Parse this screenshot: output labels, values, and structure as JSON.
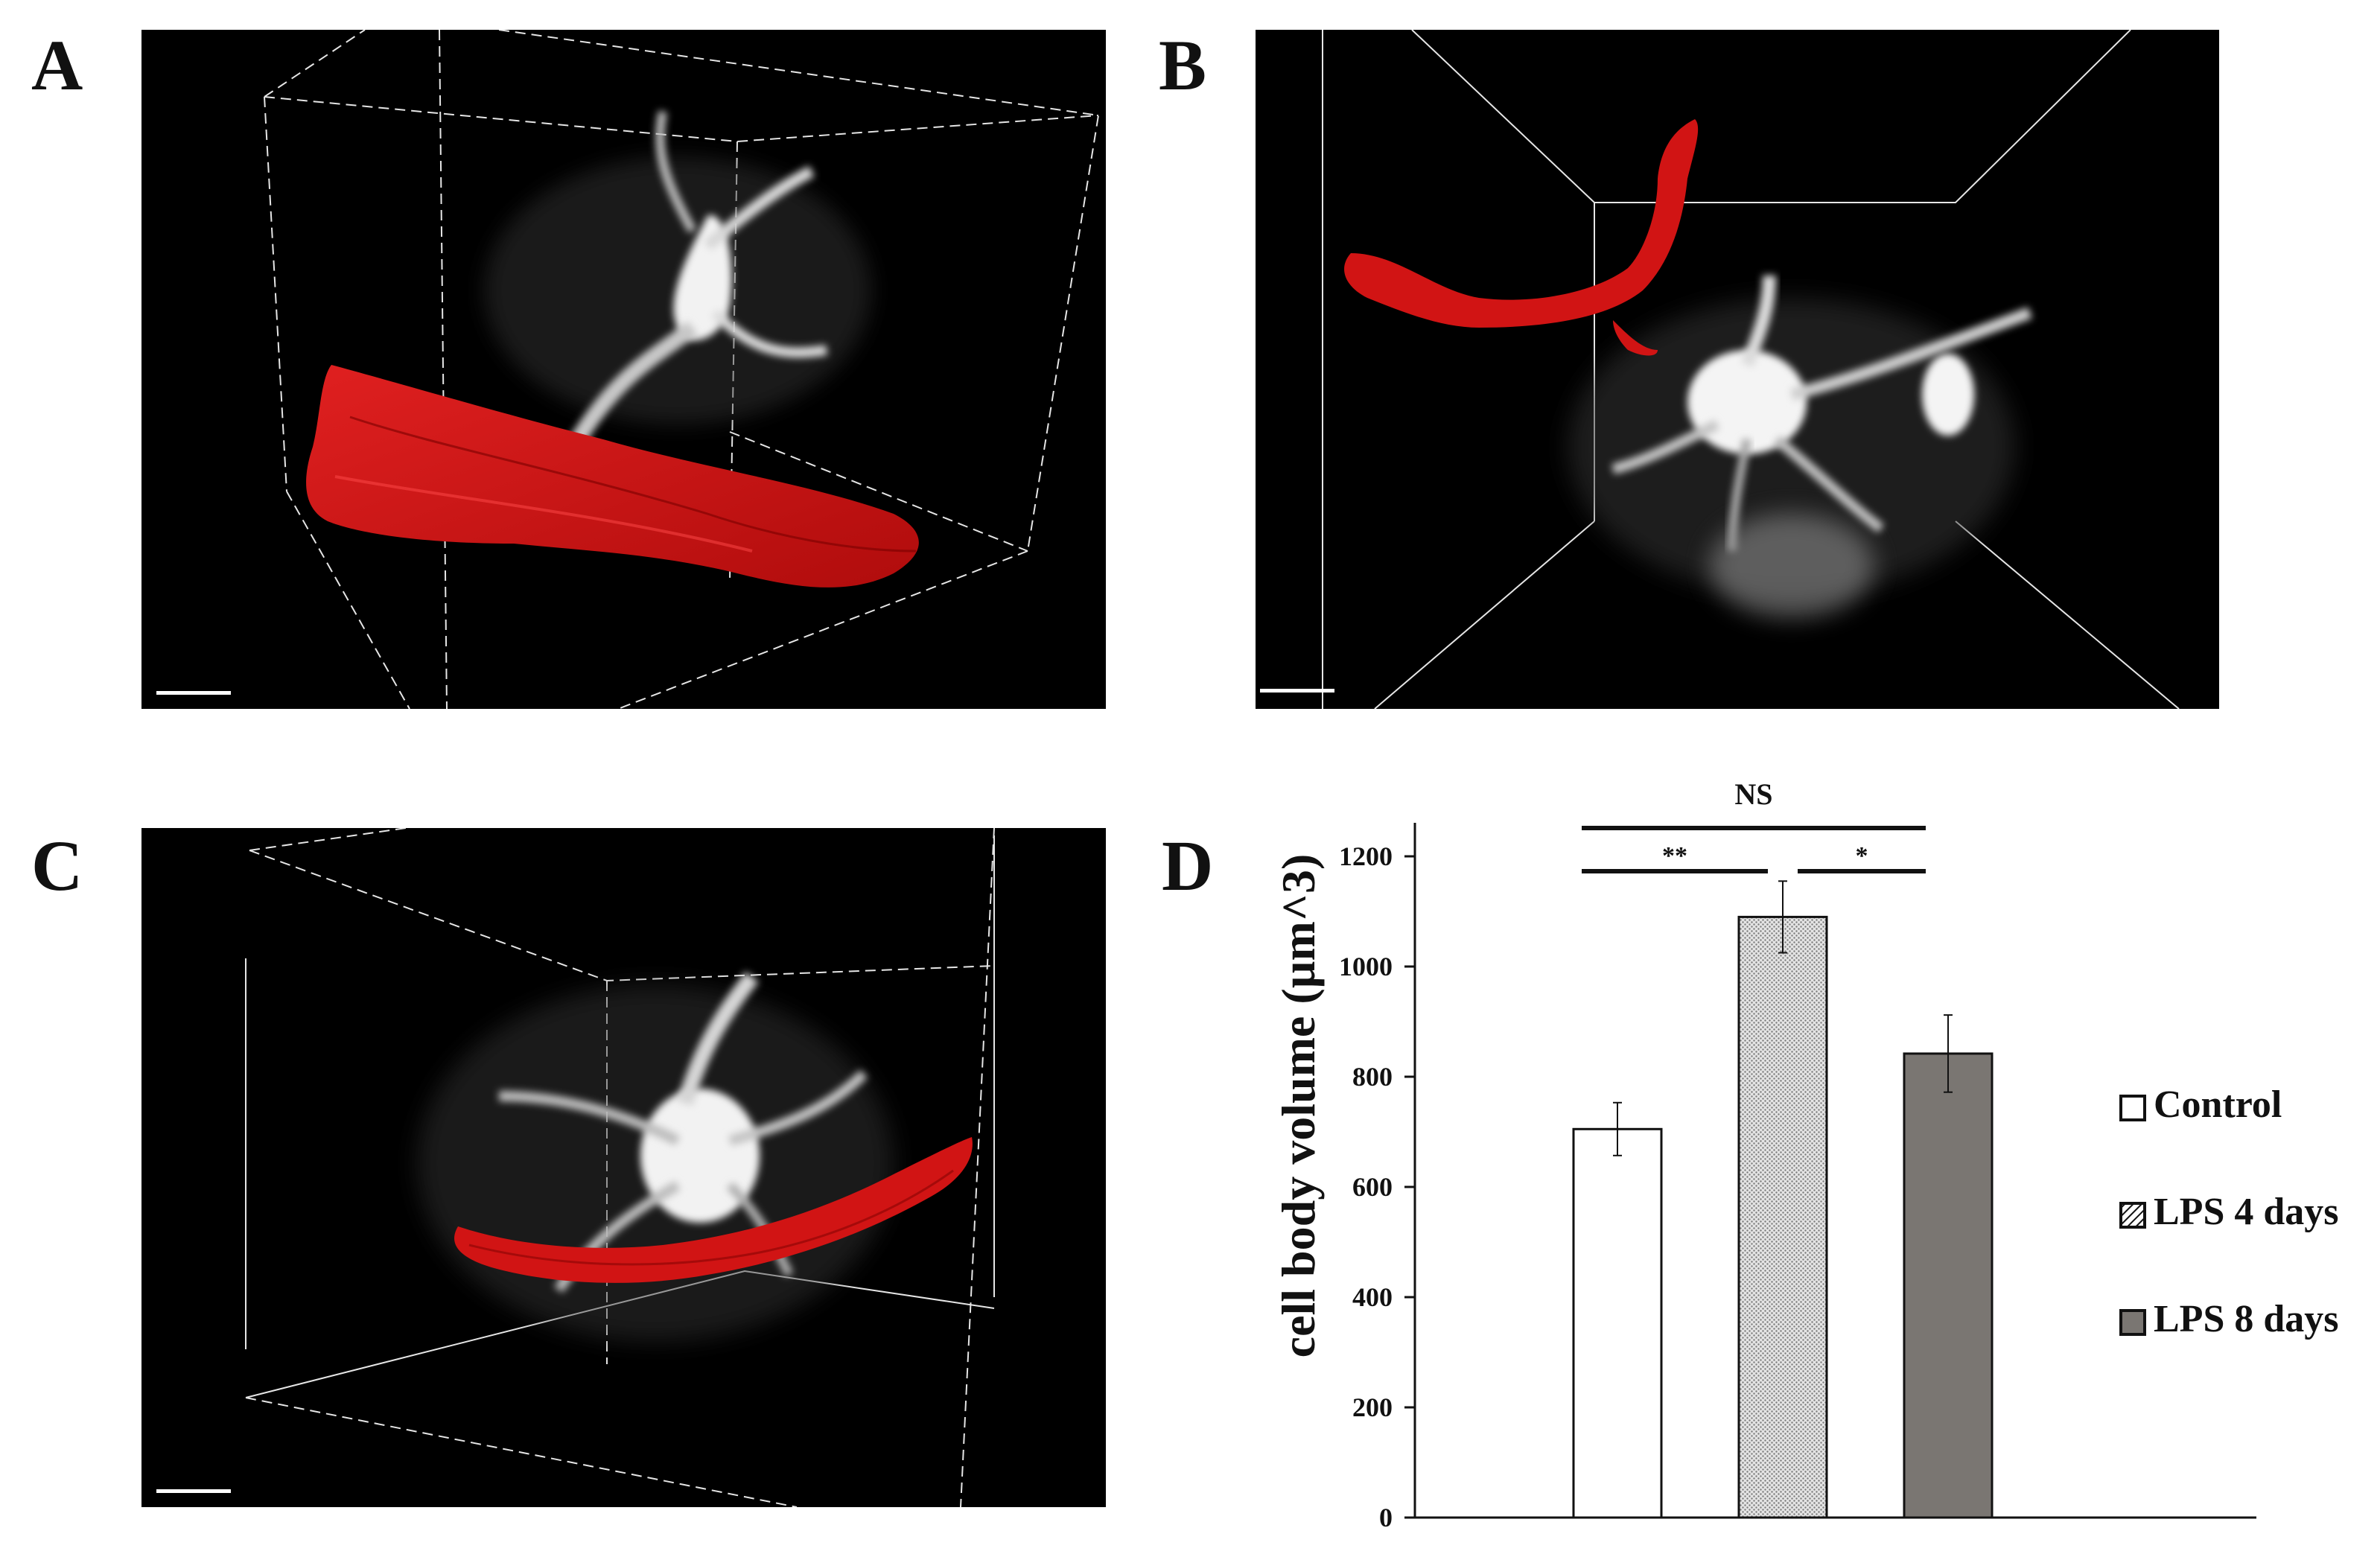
{
  "panels": {
    "a": {
      "letter": "A"
    },
    "b": {
      "letter": "B"
    },
    "c": {
      "letter": "C"
    },
    "d": {
      "letter": "D"
    }
  },
  "colors": {
    "vessel": "#d11414",
    "cell": "#f2f2f2",
    "control_fill": "#ffffff",
    "lps4_fill": "#c8c8c8",
    "lps8_fill": "#7a7672"
  },
  "chart_data": {
    "type": "bar",
    "ylabel": "cell body volume (µm^3)",
    "xlabel": "",
    "ylim": [
      0,
      1200
    ],
    "yticks": [
      0,
      200,
      400,
      600,
      800,
      1000,
      1200
    ],
    "categories": [
      "Control",
      "LPS 4 days",
      "LPS 8 days"
    ],
    "values": [
      705,
      1090,
      842
    ],
    "errors": [
      48,
      65,
      70
    ],
    "legend": [
      {
        "label": "Control",
        "pattern": "open"
      },
      {
        "label": "LPS 4 days",
        "pattern": "hatched"
      },
      {
        "label": "LPS 8 days",
        "pattern": "solid-gray"
      }
    ],
    "legend_position": "right",
    "significance": [
      {
        "from": 0,
        "to": 2,
        "label": "NS"
      },
      {
        "from": 0,
        "to": 1,
        "label": "**"
      },
      {
        "from": 1,
        "to": 2,
        "label": "*"
      }
    ]
  }
}
